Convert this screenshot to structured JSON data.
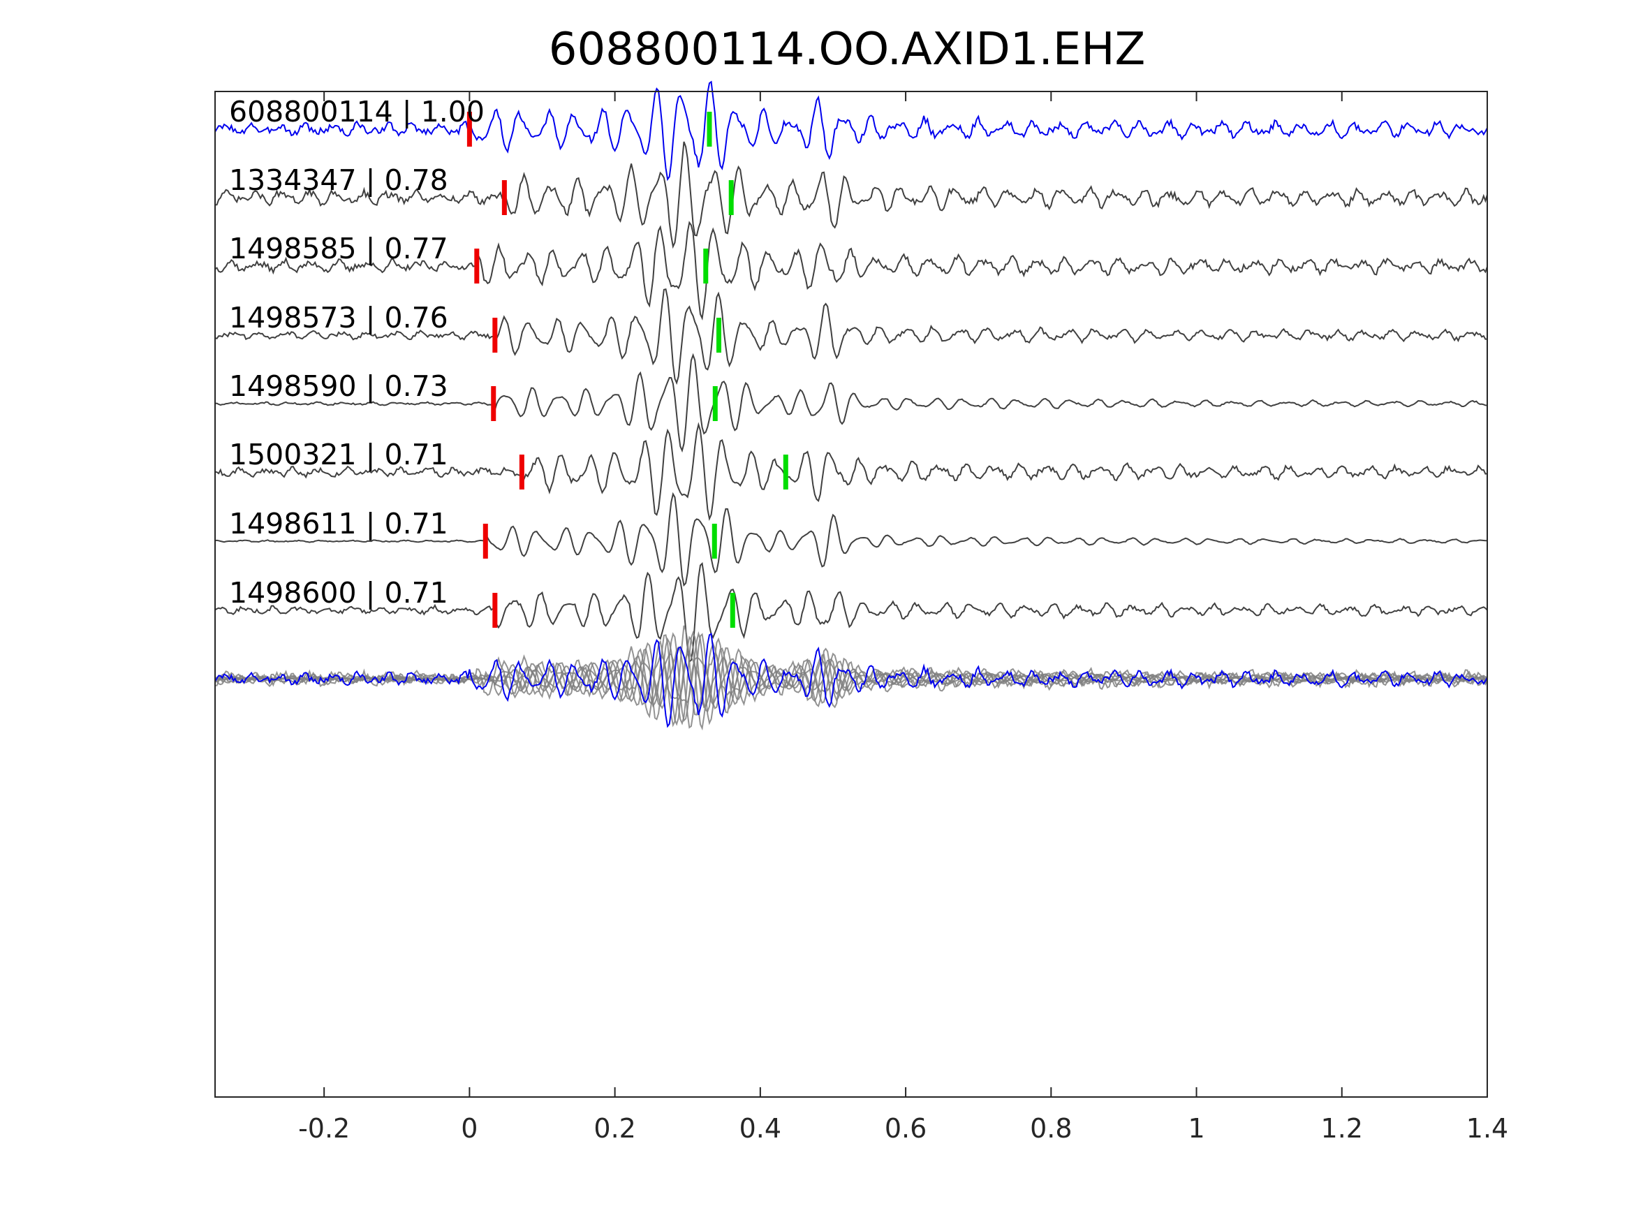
{
  "chart_data": {
    "type": "line",
    "title": "608800114.OO.AXID1.EHZ",
    "xlabel": "",
    "ylabel": "",
    "xlim": [
      -0.35,
      1.4
    ],
    "xticks": [
      -0.2,
      0,
      0.2,
      0.4,
      0.6,
      0.8,
      1,
      1.2,
      1.4
    ],
    "xtick_labels": [
      "-0.2",
      "0",
      "0.2",
      "0.4",
      "0.6",
      "0.8",
      "1",
      "1.2",
      "1.4"
    ],
    "grid": false,
    "colors": {
      "template_trace": "#0000ee",
      "matched_trace": "#404040",
      "stack_trace": "#808080",
      "p_pick": "#ee0000",
      "s_pick": "#00dd00",
      "axis": "#262626"
    },
    "series": [
      {
        "name": "608800114",
        "correlation": "1.00",
        "label": "608800114 | 1.00",
        "p_pick": 0.0,
        "s_pick": 0.33,
        "color": "#0000ee"
      },
      {
        "name": "1334347",
        "correlation": "0.78",
        "label": "1334347 | 0.78",
        "p_pick": 0.048,
        "s_pick": 0.36,
        "color": "#404040"
      },
      {
        "name": "1498585",
        "correlation": "0.77",
        "label": "1498585 | 0.77",
        "p_pick": 0.01,
        "s_pick": 0.325,
        "color": "#404040"
      },
      {
        "name": "1498573",
        "correlation": "0.76",
        "label": "1498573 | 0.76",
        "p_pick": 0.035,
        "s_pick": 0.343,
        "color": "#404040"
      },
      {
        "name": "1498590",
        "correlation": "0.73",
        "label": "1498590 | 0.73",
        "p_pick": 0.033,
        "s_pick": 0.338,
        "color": "#404040"
      },
      {
        "name": "1500321",
        "correlation": "0.71",
        "label": "1500321 | 0.71",
        "p_pick": 0.072,
        "s_pick": 0.435,
        "color": "#404040"
      },
      {
        "name": "1498611",
        "correlation": "0.71",
        "label": "1498611 | 0.71",
        "p_pick": 0.022,
        "s_pick": 0.337,
        "color": "#404040"
      },
      {
        "name": "1498600",
        "correlation": "0.71",
        "label": "1498600 | 0.71",
        "p_pick": 0.035,
        "s_pick": 0.362,
        "color": "#404040"
      }
    ]
  }
}
